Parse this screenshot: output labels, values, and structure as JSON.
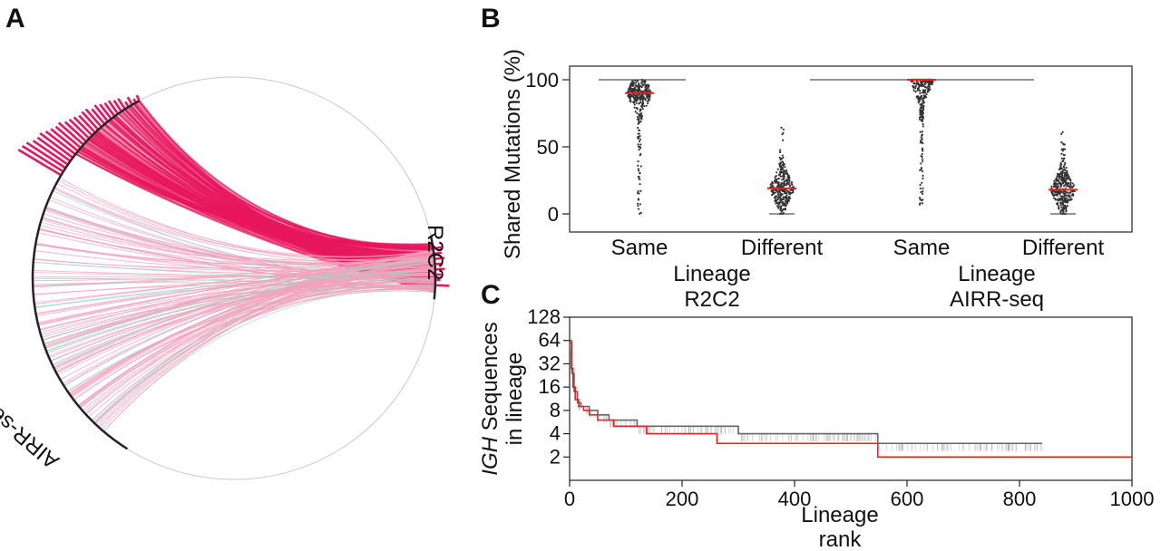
{
  "panels": {
    "a": {
      "letter": "A",
      "labels": [
        "R2C2",
        "AIRR-seq"
      ],
      "colors": {
        "chord": "#e8175d",
        "chord_light": "#f2a0bd",
        "green": "#9ed9c0",
        "circle": "#c8c8c8"
      }
    },
    "b": {
      "letter": "B"
    },
    "c": {
      "letter": "C"
    }
  },
  "chart_data": [
    {
      "panel": "B",
      "type": "scatter",
      "ylabel": "Shared Mutations (%)",
      "ylim": [
        0,
        105
      ],
      "yticks": [
        0,
        50,
        100
      ],
      "groups": [
        {
          "dataset": "R2C2",
          "category": "Same",
          "median": 90,
          "min": 0,
          "max": 100
        },
        {
          "dataset": "R2C2",
          "category": "Different",
          "median": 19,
          "min": 0,
          "max": 73
        },
        {
          "dataset": "AIRR-seq",
          "category": "Same",
          "median": 100,
          "min": 0,
          "max": 100
        },
        {
          "dataset": "AIRR-seq",
          "category": "Different",
          "median": 18,
          "min": 0,
          "max": 64
        }
      ],
      "group_label": "Lineage",
      "dataset_labels": [
        "R2C2",
        "AIRR-seq"
      ],
      "colors": {
        "points": "#333333",
        "median": "#e8231f"
      }
    },
    {
      "panel": "C",
      "type": "line",
      "ylabel_italic": "IGH",
      "ylabel_rest": " Sequences",
      "ylabel_line2": "in lineage",
      "xlabel_line1": "Lineage",
      "xlabel_line2": "rank",
      "xlim": [
        0,
        1000
      ],
      "xticks": [
        0,
        200,
        400,
        600,
        800,
        1000
      ],
      "yscale": "log2",
      "ylim": [
        1,
        128
      ],
      "yticks": [
        2,
        4,
        8,
        16,
        32,
        64,
        128
      ],
      "series": [
        {
          "color": "#e8231f",
          "steps": [
            [
              0,
              64
            ],
            [
              3,
              28
            ],
            [
              6,
              16
            ],
            [
              10,
              11
            ],
            [
              16,
              9
            ],
            [
              25,
              8
            ],
            [
              35,
              7
            ],
            [
              50,
              6
            ],
            [
              78,
              5
            ],
            [
              137,
              4
            ],
            [
              262,
              3
            ],
            [
              548,
              2
            ],
            [
              1000,
              2
            ]
          ]
        },
        {
          "color": "#666666",
          "steps": [
            [
              0,
              60
            ],
            [
              4,
              24
            ],
            [
              8,
              14
            ],
            [
              14,
              10
            ],
            [
              20,
              9
            ],
            [
              35,
              8
            ],
            [
              50,
              7
            ],
            [
              70,
              6
            ],
            [
              120,
              5
            ],
            [
              200,
              5
            ],
            [
              300,
              4
            ],
            [
              420,
              4
            ],
            [
              548,
              3
            ],
            [
              840,
              3
            ]
          ]
        }
      ]
    }
  ]
}
